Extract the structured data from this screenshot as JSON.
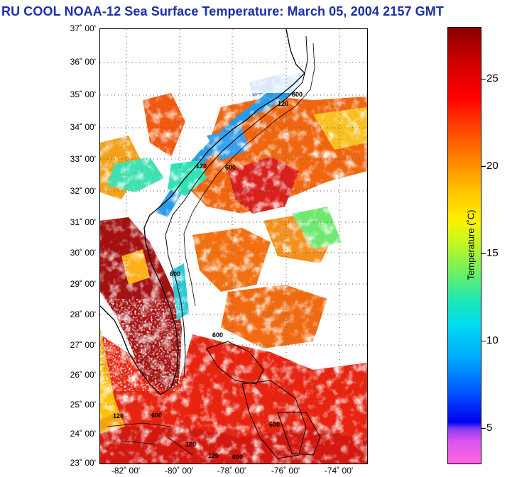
{
  "title": "RU COOL  NOAA-12  Sea Surface Temperature:  March 05, 2004 2157 GMT",
  "lat_labels": [
    "37˚ 00'",
    "36˚ 00'",
    "35˚ 00'",
    "34˚ 00'",
    "33˚ 00'",
    "32˚ 00'",
    "31˚ 00'",
    "30˚ 00'",
    "29˚ 00'",
    "28˚ 00'",
    "27˚ 00'",
    "26˚ 00'",
    "25˚ 00'",
    "24˚ 00'",
    "23˚ 00'"
  ],
  "lon_labels": [
    "-82˚ 00'",
    "-80˚ 00'",
    "-78˚ 00'",
    "-76˚ 00'",
    "-74˚ 00'"
  ],
  "colorbar": {
    "title": "Temperature (˚C)",
    "ticks": [
      "25",
      "20",
      "15",
      "10",
      "5"
    ]
  },
  "contour_labels": [
    "600",
    "120",
    "600",
    "120",
    "600",
    "600",
    "120",
    "600",
    "120",
    "600",
    "600",
    "120"
  ],
  "colors": {
    "title": "#1a2fa8",
    "warm_gulf_stream": "#e81e14",
    "cold_shelf": "#2a9be8",
    "cloud": "#ffffff"
  }
}
